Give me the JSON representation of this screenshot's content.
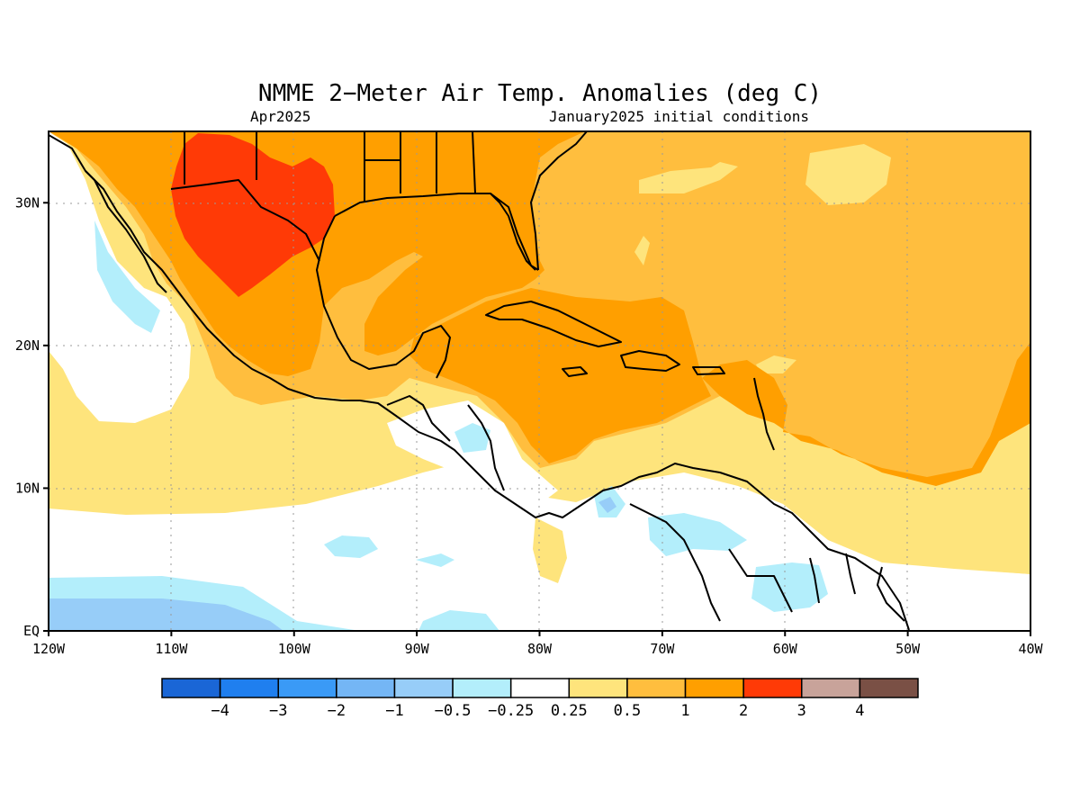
{
  "title": "NMME 2−Meter Air Temp. Anomalies (deg C)",
  "subtitle_left": "Apr2025",
  "subtitle_right": "January2025 initial conditions",
  "lon_ticks": [
    "120W",
    "110W",
    "100W",
    "90W",
    "80W",
    "70W",
    "60W",
    "50W",
    "40W"
  ],
  "lat_ticks": [
    "30N",
    "20N",
    "10N",
    "EQ"
  ],
  "colorbar": {
    "colors": [
      "#1a66d6",
      "#1f7fef",
      "#3a9af6",
      "#74b6f5",
      "#97cdf8",
      "#b3eefb",
      "#ffffff",
      "#fee47c",
      "#ffbe3e",
      "#ff9f00",
      "#ff3a06",
      "#c8a39a",
      "#7a5045"
    ],
    "labels": [
      "−4",
      "−3",
      "−2",
      "−1",
      "−0.5",
      "−0.25",
      "0.25",
      "0.5",
      "1",
      "2",
      "3",
      "4"
    ]
  },
  "colors": {
    "above_0_25": "#fee47c",
    "above_0_5": "#ffbe3e",
    "above_1": "#ff9f00",
    "above_2": "#ff3a06",
    "below_0_25": "#b3eefb",
    "below_0_5": "#97cdf8"
  }
}
